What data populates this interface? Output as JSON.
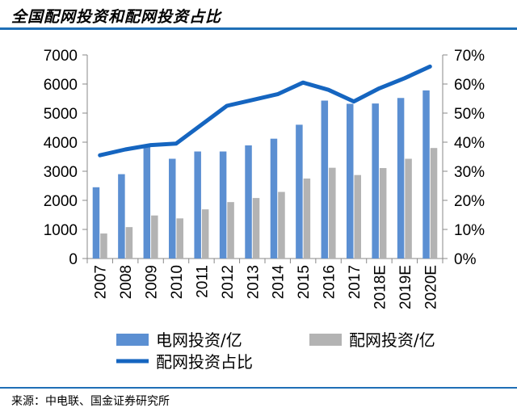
{
  "title": "全国配网投资和配网投资占比",
  "source": "来源：中电联、国金证券研究所",
  "chart_data": {
    "type": "bar+line",
    "categories": [
      "2007",
      "2008",
      "2009",
      "2010",
      "2011",
      "2012",
      "2013",
      "2014",
      "2015",
      "2016",
      "2017",
      "2018E",
      "2019E",
      "2020E"
    ],
    "series": [
      {
        "name": "电网投资/亿",
        "type": "bar",
        "axis": "left",
        "color": "#5b8fd2",
        "values": [
          2450,
          2900,
          3850,
          3430,
          3680,
          3680,
          3890,
          4120,
          4600,
          5430,
          5320,
          5330,
          5520,
          5780
        ]
      },
      {
        "name": "配网投资/亿",
        "type": "bar",
        "axis": "left",
        "color": "#b3b3b3",
        "values": [
          860,
          1080,
          1480,
          1380,
          1690,
          1940,
          2080,
          2290,
          2750,
          3120,
          2870,
          3110,
          3430,
          3800
        ]
      },
      {
        "name": "配网投资占比",
        "type": "line",
        "axis": "right",
        "color": "#1565c0",
        "values": [
          0.355,
          0.375,
          0.39,
          0.395,
          0.46,
          0.525,
          0.545,
          0.565,
          0.605,
          0.58,
          0.54,
          0.585,
          0.62,
          0.66
        ]
      }
    ],
    "y_left": {
      "min": 0,
      "max": 7000,
      "ticks": [
        "0",
        "1000",
        "2000",
        "3000",
        "4000",
        "5000",
        "6000",
        "7000"
      ]
    },
    "y_right": {
      "min": 0,
      "max": 0.7,
      "ticks": [
        "0%",
        "10%",
        "20%",
        "30%",
        "40%",
        "50%",
        "60%",
        "70%"
      ]
    },
    "legend": {
      "position": "bottom"
    },
    "grid": false
  }
}
